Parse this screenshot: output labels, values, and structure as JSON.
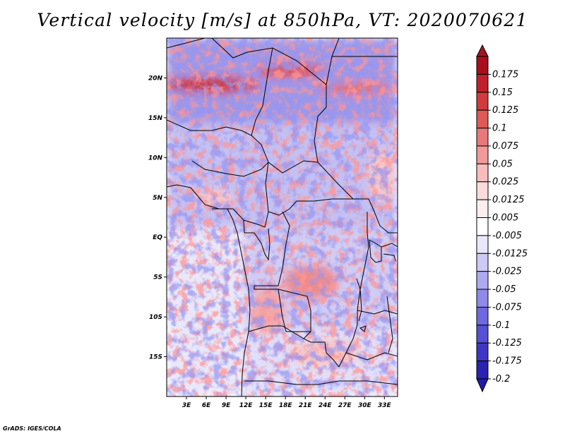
{
  "title": "Vertical velocity [m/s] at 850hPa, VT: 2020070621",
  "credit": "GrADS: IGES/COLA",
  "map": {
    "lon_range": [
      0,
      35
    ],
    "lat_range": [
      -20,
      25
    ],
    "lon_ticks": [
      {
        "value": 3,
        "label": "3E"
      },
      {
        "value": 6,
        "label": "6E"
      },
      {
        "value": 9,
        "label": "9E"
      },
      {
        "value": 12,
        "label": "12E"
      },
      {
        "value": 15,
        "label": "15E"
      },
      {
        "value": 18,
        "label": "18E"
      },
      {
        "value": 21,
        "label": "21E"
      },
      {
        "value": 24,
        "label": "24E"
      },
      {
        "value": 27,
        "label": "27E"
      },
      {
        "value": 30,
        "label": "30E"
      },
      {
        "value": 33,
        "label": "33E"
      }
    ],
    "lat_ticks": [
      {
        "value": 20,
        "label": "20N"
      },
      {
        "value": 15,
        "label": "15N"
      },
      {
        "value": 10,
        "label": "10N"
      },
      {
        "value": 5,
        "label": "5N"
      },
      {
        "value": 0,
        "label": "EQ"
      },
      {
        "value": -5,
        "label": "5S"
      },
      {
        "value": -10,
        "label": "10S"
      },
      {
        "value": -15,
        "label": "15S"
      }
    ]
  },
  "colorbar": {
    "levels": [
      {
        "label": "0.175",
        "color": "#a80f1c"
      },
      {
        "label": "0.15",
        "color": "#c11f29"
      },
      {
        "label": "0.125",
        "color": "#d13a3c"
      },
      {
        "label": "0.1",
        "color": "#de5a55"
      },
      {
        "label": "0.075",
        "color": "#e8797a"
      },
      {
        "label": "0.05",
        "color": "#f19a9a"
      },
      {
        "label": "0.025",
        "color": "#f7bdbd"
      },
      {
        "label": "0.0125",
        "color": "#fbdcdc"
      },
      {
        "label": "0.005",
        "color": "#fdeeee"
      },
      {
        "label": "-0.005",
        "color": "#ffffff"
      },
      {
        "label": "-0.0125",
        "color": "#e9e7fb"
      },
      {
        "label": "-0.025",
        "color": "#cdcaf6"
      },
      {
        "label": "-0.05",
        "color": "#aeaaf0"
      },
      {
        "label": "-0.075",
        "color": "#8f89e8"
      },
      {
        "label": "-0.1",
        "color": "#6f69df"
      },
      {
        "label": "-0.125",
        "color": "#5650d4"
      },
      {
        "label": "-0.175",
        "color": "#3e37c4"
      },
      {
        "label": "-0.2",
        "color": "#2a22b0"
      }
    ],
    "top_color": "#a11523",
    "bottom_color": "#201ca4"
  }
}
